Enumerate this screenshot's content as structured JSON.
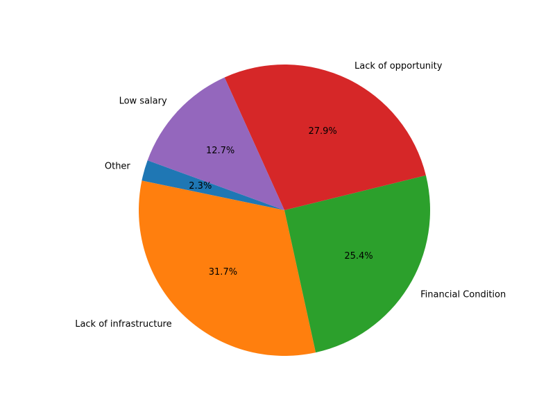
{
  "chart_data": {
    "type": "pie",
    "start_angle_deg": 160,
    "direction": "counterclockwise",
    "slices": [
      {
        "label": "Other",
        "value": 2.3,
        "pct_label": "2.3%",
        "color": "#1f77b4"
      },
      {
        "label": "Lack of infrastructure",
        "value": 31.7,
        "pct_label": "31.7%",
        "color": "#ff7f0e"
      },
      {
        "label": "Financial Condition",
        "value": 25.4,
        "pct_label": "25.4%",
        "color": "#2ca02c"
      },
      {
        "label": "Lack of opportunity",
        "value": 27.9,
        "pct_label": "27.9%",
        "color": "#d62728"
      },
      {
        "label": "Low salary",
        "value": 12.7,
        "pct_label": "12.7%",
        "color": "#9467bd"
      }
    ]
  }
}
